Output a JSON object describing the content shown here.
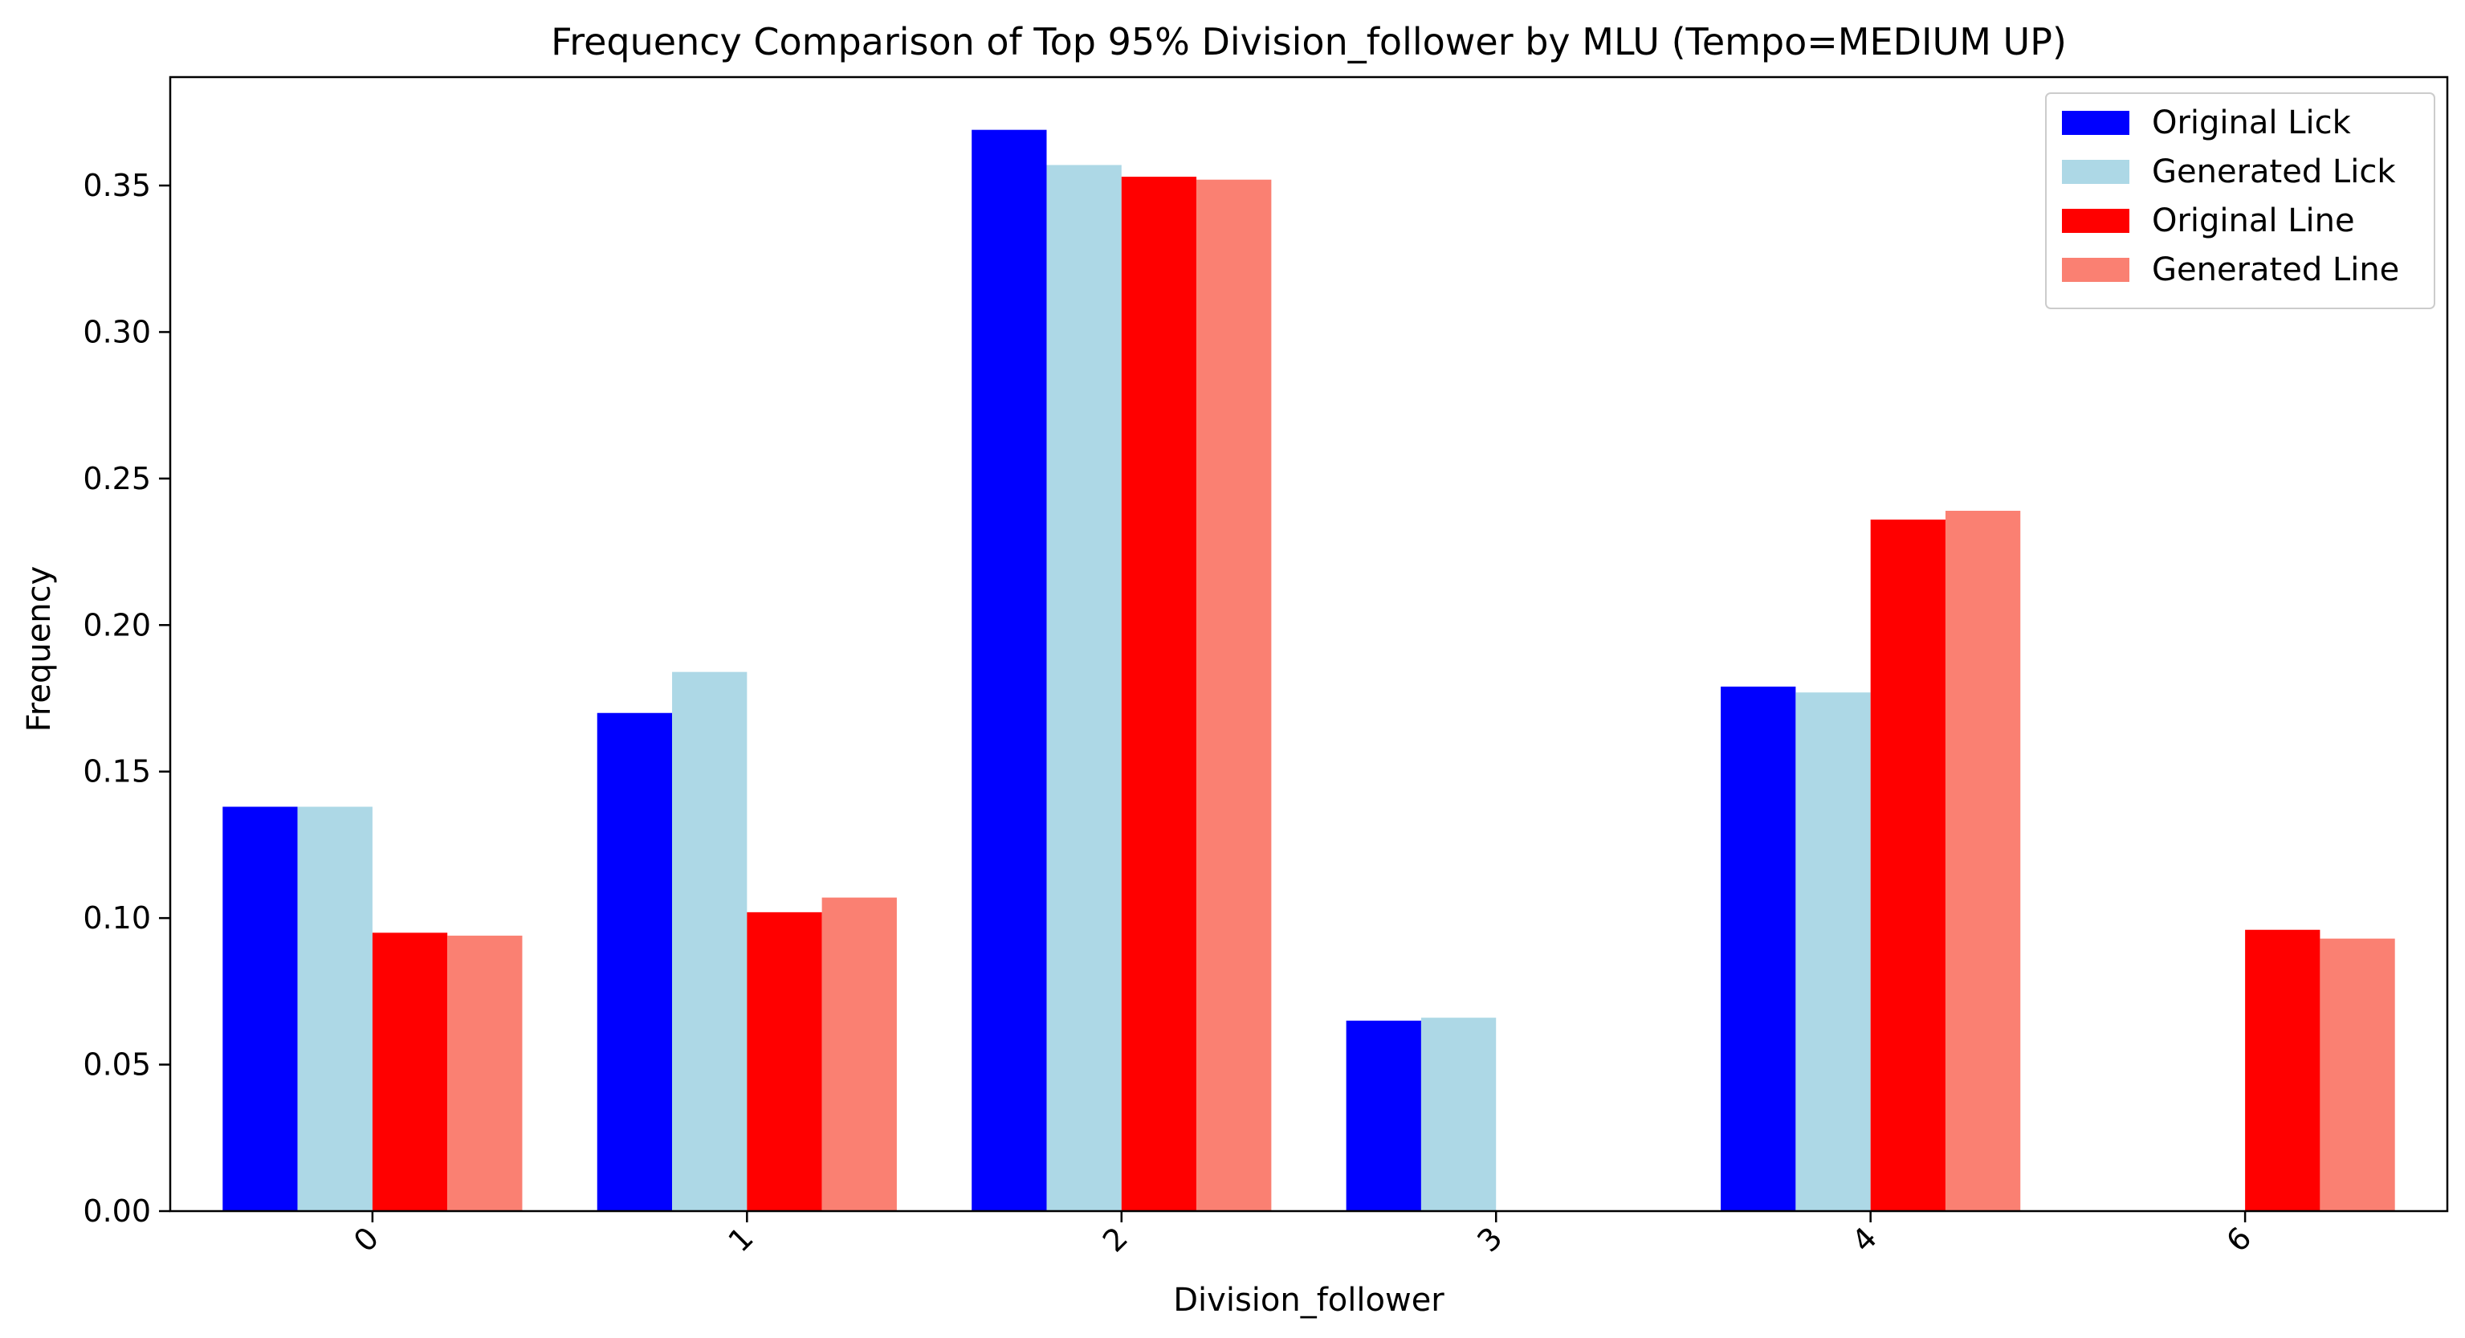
{
  "chart_data": {
    "type": "bar",
    "title": "Frequency Comparison of Top 95% Division_follower by MLU (Tempo=MEDIUM UP)",
    "xlabel": "Division_follower",
    "ylabel": "Frequency",
    "categories": [
      "0",
      "1",
      "2",
      "3",
      "4",
      "6"
    ],
    "ylim": [
      0,
      0.387
    ],
    "yticks": [
      0.0,
      0.05,
      0.1,
      0.15,
      0.2,
      0.25,
      0.3,
      0.35
    ],
    "ytick_labels": [
      "0.00",
      "0.05",
      "0.10",
      "0.15",
      "0.20",
      "0.25",
      "0.30",
      "0.35"
    ],
    "xtick_rotation_deg": 45,
    "grid": false,
    "legend_position": "top-right",
    "series": [
      {
        "name": "Original Lick",
        "color": "#0000ff",
        "values": [
          0.138,
          0.17,
          0.369,
          0.065,
          0.179,
          0
        ]
      },
      {
        "name": "Generated Lick",
        "color": "#add8e6",
        "values": [
          0.138,
          0.184,
          0.357,
          0.066,
          0.177,
          0
        ]
      },
      {
        "name": "Original Line",
        "color": "#ff0000",
        "values": [
          0.095,
          0.102,
          0.353,
          0,
          0.236,
          0.096
        ]
      },
      {
        "name": "Generated Line",
        "color": "#fa8072",
        "values": [
          0.094,
          0.107,
          0.352,
          0,
          0.239,
          0.093
        ]
      }
    ]
  }
}
